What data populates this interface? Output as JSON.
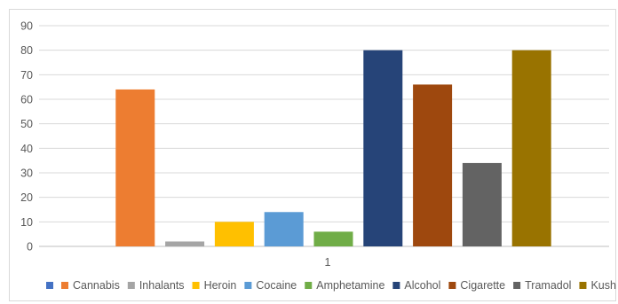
{
  "chart_data": {
    "type": "bar",
    "categories": [
      "1"
    ],
    "series": [
      {
        "name": "",
        "values": [
          0
        ],
        "color": "#4472C4"
      },
      {
        "name": "Cannabis",
        "values": [
          64
        ],
        "color": "#ED7D31"
      },
      {
        "name": "Inhalants",
        "values": [
          2
        ],
        "color": "#A5A5A5"
      },
      {
        "name": "Heroin",
        "values": [
          10
        ],
        "color": "#FFC000"
      },
      {
        "name": "Cocaine",
        "values": [
          14
        ],
        "color": "#5B9BD5"
      },
      {
        "name": "Amphetamine",
        "values": [
          6
        ],
        "color": "#70AD47"
      },
      {
        "name": "Alcohol",
        "values": [
          80
        ],
        "color": "#264478"
      },
      {
        "name": "Cigarette",
        "values": [
          66
        ],
        "color": "#9E480E"
      },
      {
        "name": "Tramadol",
        "values": [
          34
        ],
        "color": "#636363"
      },
      {
        "name": "Kush",
        "values": [
          80
        ],
        "color": "#997300"
      }
    ],
    "ylim": [
      0,
      90
    ],
    "yticks": [
      "0",
      "10",
      "20",
      "30",
      "40",
      "50",
      "60",
      "70",
      "80",
      "90"
    ],
    "grid": true,
    "legend_position": "bottom"
  }
}
